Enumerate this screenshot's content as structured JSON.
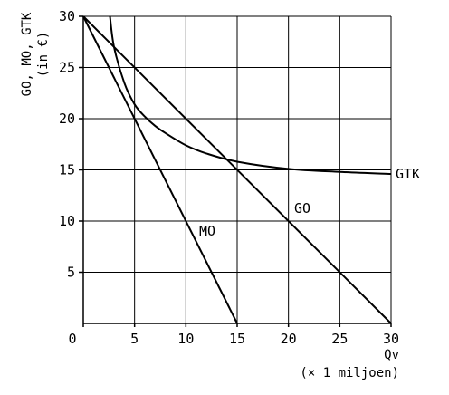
{
  "chart_data": {
    "type": "line",
    "ylabel_lines": [
      "GO, MO, GTK",
      "(in €)"
    ],
    "xlabel_lines": [
      "Qv",
      "(× 1 miljoen)"
    ],
    "xlim": [
      0,
      30
    ],
    "ylim": [
      0,
      30
    ],
    "x_ticks": [
      0,
      5,
      10,
      15,
      20,
      25,
      30
    ],
    "y_ticks": [
      5,
      10,
      15,
      20,
      25,
      30
    ],
    "grid": true,
    "series": [
      {
        "name": "GO",
        "x": [
          0,
          30
        ],
        "y": [
          30,
          0
        ]
      },
      {
        "name": "MO",
        "x": [
          0,
          15
        ],
        "y": [
          30,
          0
        ]
      },
      {
        "name": "GTK",
        "x": [
          2.6,
          3,
          4,
          5,
          6,
          7,
          8,
          10,
          12,
          15,
          20,
          25,
          30
        ],
        "y": [
          30,
          27,
          23.5,
          21.4,
          20.2,
          19.3,
          18.6,
          17.4,
          16.6,
          15.8,
          15.1,
          14.8,
          14.6
        ]
      }
    ]
  }
}
